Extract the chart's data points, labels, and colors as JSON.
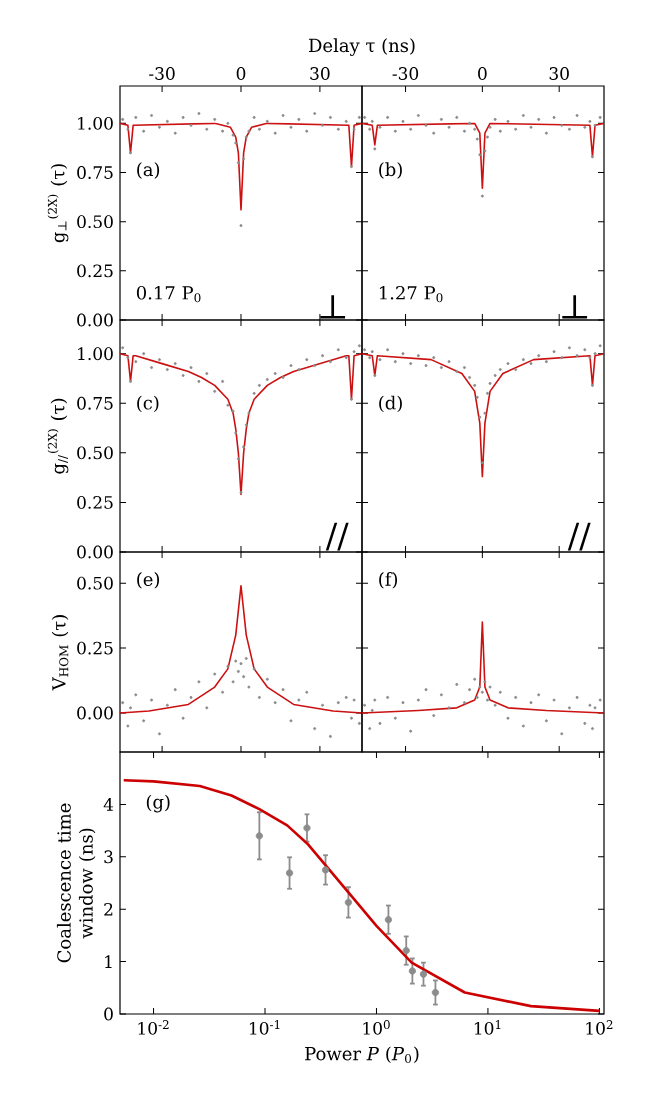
{
  "chart_data": [
    {
      "type": "scatter",
      "xlabel": "Delay τ (ns)",
      "ylabel": "g$_{⊥}$$^{(2X)}$ (τ)",
      "xlim": [
        -46,
        46
      ],
      "ylim": [
        0,
        1.19
      ],
      "xticks": [
        -30,
        0,
        30
      ],
      "yticks": [
        {
          "value": 0,
          "label": "0.00"
        },
        {
          "value": 0.25,
          "label": "0.25"
        },
        {
          "value": 0.5,
          "label": "0.50"
        },
        {
          "value": 0.75,
          "label": "0.75"
        },
        {
          "value": 1,
          "label": "1.00"
        }
      ],
      "annotations": [
        "(a)",
        "0.17 P$_{0}$",
        "⊥"
      ],
      "series": [
        {
          "marker": "circle",
          "color": "#8c8c8c",
          "x": [
            -45,
            -43,
            -42,
            -40,
            -37,
            -34,
            -31,
            -28,
            -25,
            -22,
            -19,
            -16,
            -13,
            -10,
            -7,
            -5,
            -3,
            -2,
            -1,
            0,
            1,
            2,
            3,
            5,
            7,
            10,
            13,
            16,
            19,
            22,
            25,
            28,
            31,
            34,
            37,
            40,
            42,
            43,
            45
          ],
          "values": [
            1.02,
            0.97,
            0.85,
            1.03,
            0.96,
            1.04,
            0.98,
            1.01,
            0.95,
            1.03,
            0.99,
            1.05,
            0.97,
            1.02,
            0.96,
            1.0,
            0.94,
            0.9,
            0.8,
            0.48,
            0.82,
            0.93,
            0.96,
            1.03,
            0.97,
            1.01,
            0.95,
            1.04,
            0.98,
            1.02,
            0.96,
            1.05,
            0.99,
            1.03,
            0.97,
            1.01,
            0.78,
            0.97,
            1.03
          ]
        },
        {
          "type": "line",
          "marker": "none",
          "line_style": "solid",
          "color": "#cc1111",
          "x": [
            -46,
            -43,
            -42,
            -41,
            -10,
            -4,
            -2,
            -1,
            0,
            1,
            2,
            4,
            10,
            41,
            42,
            43,
            46
          ],
          "values": [
            1,
            0.99,
            0.85,
            0.99,
            1,
            0.98,
            0.93,
            0.85,
            0.56,
            0.85,
            0.93,
            0.98,
            1,
            0.99,
            0.78,
            0.99,
            1
          ]
        }
      ]
    },
    {
      "type": "scatter",
      "tick_labels": "x",
      "xlim": [
        -47,
        47.5
      ],
      "ylim": [
        0,
        1.19
      ],
      "xticks": [
        -30,
        0,
        30
      ],
      "yticks": [
        {
          "value": 0,
          "label": null
        },
        {
          "value": 0.25,
          "label": null
        },
        {
          "value": 0.5,
          "label": null
        },
        {
          "value": 0.75,
          "label": null
        },
        {
          "value": 1,
          "label": null
        }
      ],
      "annotations": [
        "(b)",
        "1.27 P$_{0}$",
        "⊥"
      ],
      "series": [
        {
          "marker": "circle",
          "color": "#8c8c8c",
          "x": [
            -46,
            -44,
            -43,
            -42,
            -40,
            -37,
            -34,
            -31,
            -28,
            -25,
            -22,
            -19,
            -16,
            -13,
            -10,
            -7,
            -5,
            -3,
            -2,
            -1,
            0,
            1,
            2,
            3,
            5,
            7,
            10,
            13,
            16,
            19,
            22,
            25,
            28,
            31,
            34,
            37,
            40,
            42,
            43,
            44,
            46
          ],
          "values": [
            1.03,
            0.97,
            1.01,
            0.87,
            0.98,
            1.03,
            0.96,
            1.01,
            0.97,
            1.04,
            0.99,
            0.95,
            1.02,
            0.98,
            1.03,
            0.96,
            1.0,
            0.97,
            0.92,
            0.84,
            0.63,
            0.86,
            0.93,
            0.98,
            1.02,
            0.96,
            1.01,
            0.97,
            1.04,
            0.98,
            1.02,
            0.95,
            1.03,
            0.99,
            0.97,
            1.04,
            0.98,
            1.01,
            0.83,
            0.99,
            1.03
          ]
        },
        {
          "type": "line",
          "marker": "none",
          "line_style": "solid",
          "color": "#cc1111",
          "x": [
            -47,
            -43,
            -42,
            -41,
            -3,
            -1,
            0,
            1,
            3,
            42,
            43,
            44,
            47.5
          ],
          "values": [
            1,
            0.99,
            0.89,
            0.99,
            1,
            0.95,
            0.67,
            0.95,
            1,
            0.99,
            0.83,
            0.99,
            1
          ]
        }
      ]
    },
    {
      "type": "scatter",
      "tick_labels": "y",
      "ylabel": "g$_{//}$$^{(2X)}$ (τ)",
      "xlim": [
        -46,
        46
      ],
      "ylim": [
        0,
        1.17
      ],
      "xticks": [
        -30,
        0,
        30
      ],
      "yticks": [
        {
          "value": 0,
          "label": "0.00"
        },
        {
          "value": 0.25,
          "label": "0.25"
        },
        {
          "value": 0.5,
          "label": "0.50"
        },
        {
          "value": 0.75,
          "label": "0.75"
        },
        {
          "value": 1,
          "label": "1.00"
        }
      ],
      "annotations": [
        "(c)",
        "//"
      ],
      "series": [
        {
          "marker": "circle",
          "color": "#8c8c8c",
          "x": [
            -45,
            -43,
            -42,
            -40,
            -37,
            -34,
            -31,
            -28,
            -25,
            -22,
            -19,
            -16,
            -13,
            -10,
            -7,
            -5,
            -3,
            -2,
            -1,
            0,
            1,
            2,
            3,
            5,
            7,
            10,
            13,
            16,
            19,
            22,
            25,
            28,
            31,
            34,
            37,
            40,
            42,
            43,
            45
          ],
          "values": [
            1.03,
            0.98,
            0.86,
            0.96,
            1.0,
            0.93,
            0.97,
            0.92,
            0.95,
            0.89,
            0.93,
            0.86,
            0.9,
            0.81,
            0.86,
            0.74,
            0.71,
            0.6,
            0.47,
            0.3,
            0.53,
            0.64,
            0.7,
            0.8,
            0.84,
            0.87,
            0.9,
            0.88,
            0.94,
            0.92,
            0.97,
            0.94,
            0.99,
            0.96,
            1.02,
            0.98,
            0.77,
            1.01,
            1.04
          ]
        },
        {
          "type": "line",
          "marker": "none",
          "line_style": "solid",
          "color": "#cc1111",
          "x": [
            -46,
            -43,
            -42,
            -41,
            -40,
            -30,
            -20,
            -15,
            -10,
            -5,
            -3,
            -2,
            -1,
            0,
            1,
            2,
            3,
            5,
            10,
            15,
            20,
            30,
            40,
            41,
            42,
            43,
            46
          ],
          "values": [
            1,
            0.99,
            0.86,
            0.99,
            0.99,
            0.95,
            0.91,
            0.88,
            0.84,
            0.77,
            0.7,
            0.62,
            0.5,
            0.29,
            0.5,
            0.62,
            0.7,
            0.77,
            0.84,
            0.88,
            0.91,
            0.95,
            0.99,
            0.99,
            0.77,
            0.99,
            1
          ]
        }
      ]
    },
    {
      "type": "scatter",
      "tick_labels": false,
      "xlim": [
        -47,
        47.5
      ],
      "ylim": [
        0,
        1.17
      ],
      "xticks": [
        -30,
        0,
        30
      ],
      "yticks": [
        {
          "value": 0,
          "label": null
        },
        {
          "value": 0.25,
          "label": null
        },
        {
          "value": 0.5,
          "label": null
        },
        {
          "value": 0.75,
          "label": null
        },
        {
          "value": 1,
          "label": null
        }
      ],
      "annotations": [
        "(d)",
        "//"
      ],
      "series": [
        {
          "marker": "circle",
          "color": "#8c8c8c",
          "x": [
            -46,
            -44,
            -43,
            -42,
            -40,
            -37,
            -34,
            -31,
            -28,
            -25,
            -22,
            -19,
            -16,
            -13,
            -10,
            -7,
            -5,
            -3,
            -2,
            -1,
            0,
            1,
            2,
            3,
            5,
            7,
            10,
            13,
            16,
            19,
            22,
            25,
            28,
            31,
            34,
            37,
            40,
            42,
            43,
            44,
            46
          ],
          "values": [
            1.02,
            0.98,
            1.01,
            0.89,
            0.97,
            1.02,
            0.96,
            1.0,
            0.95,
            0.99,
            0.94,
            0.98,
            0.93,
            0.96,
            0.91,
            0.93,
            0.88,
            0.84,
            0.78,
            0.68,
            0.45,
            0.7,
            0.8,
            0.85,
            0.89,
            0.92,
            0.95,
            0.92,
            0.97,
            0.95,
            0.99,
            0.96,
            1.01,
            0.98,
            1.03,
            0.99,
            1.02,
            0.98,
            0.84,
            1.0,
            1.04
          ]
        },
        {
          "type": "line",
          "marker": "none",
          "line_style": "solid",
          "color": "#cc1111",
          "x": [
            -47,
            -43,
            -42,
            -41,
            -20,
            -8,
            -3,
            -1,
            0,
            1,
            3,
            8,
            20,
            42,
            43,
            44,
            47.5
          ],
          "values": [
            1,
            0.99,
            0.89,
            0.99,
            0.97,
            0.9,
            0.81,
            0.65,
            0.38,
            0.65,
            0.81,
            0.9,
            0.97,
            0.99,
            0.84,
            0.99,
            1
          ]
        }
      ]
    },
    {
      "type": "scatter",
      "tick_labels": "y",
      "ylabel": "V$_{HOM}$ (τ)",
      "xlim": [
        -46,
        46
      ],
      "ylim": [
        -0.15,
        0.62
      ],
      "xticks": [
        -30,
        0,
        30
      ],
      "yticks": [
        {
          "value": 0,
          "label": "0.00"
        },
        {
          "value": 0.25,
          "label": "0.25"
        },
        {
          "value": 0.5,
          "label": "0.50"
        }
      ],
      "annotations": [
        "(e)"
      ],
      "series": [
        {
          "marker": "circle",
          "color": "#8c8c8c",
          "x": [
            -45,
            -43,
            -42,
            -40,
            -37,
            -34,
            -31,
            -28,
            -25,
            -22,
            -19,
            -16,
            -13,
            -10,
            -7,
            -5,
            -3,
            -2,
            -1,
            0,
            1,
            2,
            3,
            5,
            7,
            10,
            13,
            16,
            19,
            22,
            25,
            28,
            31,
            34,
            37,
            40,
            42,
            43,
            45
          ],
          "values": [
            0.04,
            -0.05,
            0.02,
            0.07,
            -0.03,
            0.05,
            -0.08,
            0.03,
            0.09,
            -0.02,
            0.06,
            0.12,
            0.02,
            0.15,
            0.08,
            0.18,
            0.12,
            0.2,
            0.16,
            0.19,
            0.14,
            0.21,
            0.1,
            0.17,
            0.06,
            0.13,
            0.04,
            0.09,
            -0.03,
            0.05,
            0.08,
            -0.06,
            0.03,
            -0.09,
            0.04,
            0.06,
            -0.02,
            0.05,
            -0.04
          ]
        },
        {
          "type": "line",
          "marker": "none",
          "line_style": "solid",
          "color": "#cc1111",
          "x": [
            -46,
            -35,
            -20,
            -10,
            -5,
            -2,
            0,
            2,
            5,
            10,
            20,
            35,
            46
          ],
          "values": [
            0,
            0.008,
            0.033,
            0.1,
            0.17,
            0.3,
            0.49,
            0.3,
            0.17,
            0.1,
            0.033,
            0.008,
            0
          ]
        }
      ]
    },
    {
      "type": "scatter",
      "tick_labels": false,
      "xlim": [
        -47,
        47.5
      ],
      "ylim": [
        -0.15,
        0.62
      ],
      "xticks": [
        -30,
        0,
        30
      ],
      "yticks": [
        {
          "value": 0,
          "label": null
        },
        {
          "value": 0.25,
          "label": null
        },
        {
          "value": 0.5,
          "label": null
        }
      ],
      "annotations": [
        "(f)"
      ],
      "series": [
        {
          "marker": "circle",
          "color": "#8c8c8c",
          "x": [
            -46,
            -44,
            -43,
            -42,
            -40,
            -37,
            -34,
            -31,
            -28,
            -25,
            -22,
            -19,
            -16,
            -13,
            -10,
            -7,
            -5,
            -3,
            -2,
            -1,
            0,
            1,
            2,
            3,
            5,
            7,
            10,
            13,
            16,
            19,
            22,
            25,
            28,
            31,
            34,
            37,
            40,
            42,
            43,
            44,
            46
          ],
          "values": [
            0.03,
            -0.06,
            0.01,
            0.05,
            -0.04,
            0.06,
            -0.02,
            0.04,
            -0.07,
            0.05,
            0.09,
            -0.01,
            0.07,
            0.02,
            0.11,
            0.04,
            0.09,
            0.13,
            0.06,
            0.1,
            0.08,
            0.12,
            0.05,
            0.1,
            0.03,
            0.08,
            -0.02,
            0.06,
            -0.05,
            0.04,
            0.07,
            -0.03,
            0.05,
            -0.08,
            0.02,
            0.06,
            -0.04,
            0.03,
            -0.06,
            0.02,
            0.05
          ]
        },
        {
          "type": "line",
          "marker": "none",
          "line_style": "solid",
          "color": "#cc1111",
          "x": [
            -47,
            -25,
            -10,
            -3,
            -1,
            0,
            1,
            3,
            10,
            25,
            47.5
          ],
          "values": [
            0,
            0.01,
            0.02,
            0.05,
            0.1,
            0.35,
            0.1,
            0.05,
            0.02,
            0.01,
            0
          ]
        }
      ]
    },
    {
      "type": "scatter",
      "log": "x",
      "xlabel": "Power *P* (*P*$_{0}$)",
      "ylabel": "Coalescence time window (ns)",
      "xlim": [
        0.005,
        110
      ],
      "ylim": [
        0,
        5
      ],
      "xticks": [
        {
          "value": 0.01,
          "label": "10$^{-2}$"
        },
        {
          "value": 0.1,
          "label": "10$^{-1}$"
        },
        {
          "value": 1,
          "label": "10$^{0}$"
        },
        {
          "value": 10,
          "label": "10$^{1}$"
        },
        {
          "value": 100,
          "label": "10$^{2}$"
        }
      ],
      "yticks": [
        0,
        1,
        2,
        3,
        4
      ],
      "annotations": [
        "(g)"
      ],
      "series": [
        {
          "marker": "circle",
          "color": "#8c8c8c",
          "x": [
            0.089,
            0.166,
            0.238,
            0.349,
            0.56,
            1.28,
            1.85,
            2.1,
            2.64,
            3.38
          ],
          "values": [
            3.4,
            2.69,
            3.55,
            2.75,
            2.13,
            1.8,
            1.21,
            0.82,
            0.76,
            0.41
          ],
          "errors": [
            0.45,
            0.3,
            0.26,
            0.28,
            0.29,
            0.27,
            0.27,
            0.24,
            0.22,
            0.23
          ]
        },
        {
          "type": "line",
          "marker": "none",
          "line_style": "solid",
          "color": "#cc0000",
          "x": [
            0.0054,
            0.01,
            0.026,
            0.05,
            0.089,
            0.158,
            0.24,
            0.56,
            1,
            2.07,
            6.2,
            24.3,
            100
          ],
          "values": [
            4.46,
            4.44,
            4.35,
            4.17,
            3.91,
            3.6,
            3.25,
            2.32,
            1.68,
            0.98,
            0.41,
            0.15,
            0.06
          ]
        }
      ]
    }
  ]
}
